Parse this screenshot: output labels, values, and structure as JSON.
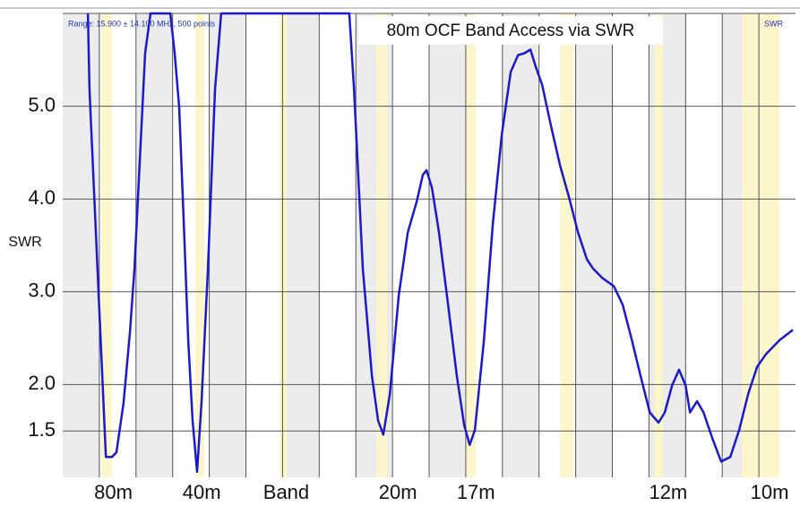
{
  "chart_data": {
    "type": "line",
    "title": "80m OCF Band Access via SWR",
    "subtitle": "Range: 15.900 ± 14.100 MHz, 500 points",
    "y_label": "SWR",
    "xlim": [
      1.8,
      30
    ],
    "ylim": [
      1,
      6
    ],
    "xticks": [
      {
        "value": 3.75,
        "label": "80m"
      },
      {
        "value": 7.15,
        "label": "40m"
      },
      {
        "value": 10.4,
        "label": "Band"
      },
      {
        "value": 14.7,
        "label": "20m"
      },
      {
        "value": 17.7,
        "label": "17m"
      },
      {
        "value": 25.1,
        "label": "12m"
      },
      {
        "value": 29.0,
        "label": "10m"
      }
    ],
    "yticks": [
      {
        "value": 1.5,
        "label": "1.5"
      },
      {
        "value": 2,
        "label": "2.0"
      },
      {
        "value": 3,
        "label": "3.0"
      },
      {
        "value": 4,
        "label": "4.0"
      },
      {
        "value": 5,
        "label": "5.0"
      }
    ],
    "grid": true,
    "shaded_ranges": [
      [
        3.28,
        3.7
      ],
      [
        6.9,
        7.25
      ],
      [
        10.14,
        10.42
      ],
      [
        13.87,
        14.28
      ],
      [
        17.3,
        17.7
      ],
      [
        20.94,
        21.46
      ],
      [
        24.56,
        24.9
      ],
      [
        27.94,
        29.39
      ]
    ],
    "shade_color": "#fbf6cc",
    "series": [
      {
        "name": "SWR",
        "color": "#1a1acc",
        "x": [
          2.77,
          2.83,
          3.46,
          3.7,
          3.87,
          4.14,
          4.39,
          4.56,
          4.73,
          4.97,
          5.18,
          5.94,
          6.11,
          6.28,
          6.46,
          6.63,
          6.8,
          6.97,
          7.14,
          7.39,
          7.66,
          7.9,
          12.83,
          13.01,
          13.35,
          13.7,
          13.94,
          14.14,
          14.39,
          14.73,
          15.08,
          15.42,
          15.66,
          15.8,
          16.01,
          16.28,
          16.63,
          16.97,
          17.25,
          17.46,
          17.66,
          18.01,
          18.35,
          18.7,
          19.04,
          19.32,
          19.56,
          19.8,
          20.01,
          20.25,
          20.59,
          20.94,
          21.28,
          21.63,
          21.97,
          22.21,
          22.56,
          23.01,
          23.35,
          23.7,
          24.04,
          24.39,
          24.73,
          24.97,
          25.25,
          25.52,
          25.77,
          25.94,
          26.21,
          26.46,
          26.8,
          27.14,
          27.49,
          27.83,
          28.18,
          28.52,
          28.87,
          29.39,
          29.9
        ],
        "values": [
          6.0,
          5.18,
          1.22,
          1.22,
          1.27,
          1.8,
          2.57,
          3.25,
          4.21,
          5.57,
          6.0,
          6.0,
          5.57,
          4.99,
          3.73,
          2.48,
          1.61,
          1.06,
          1.8,
          3.25,
          5.18,
          6.0,
          6.0,
          5.18,
          3.25,
          2.09,
          1.61,
          1.46,
          1.9,
          2.96,
          3.64,
          3.97,
          4.26,
          4.31,
          4.12,
          3.64,
          2.86,
          2.09,
          1.56,
          1.35,
          1.51,
          2.48,
          3.73,
          4.7,
          5.37,
          5.55,
          5.57,
          5.61,
          5.42,
          5.23,
          4.79,
          4.36,
          4.02,
          3.64,
          3.35,
          3.25,
          3.15,
          3.06,
          2.86,
          2.48,
          2.09,
          1.7,
          1.59,
          1.7,
          1.99,
          2.16,
          1.99,
          1.7,
          1.82,
          1.7,
          1.42,
          1.17,
          1.22,
          1.51,
          1.9,
          2.19,
          2.33,
          2.48,
          2.59
        ]
      }
    ]
  }
}
